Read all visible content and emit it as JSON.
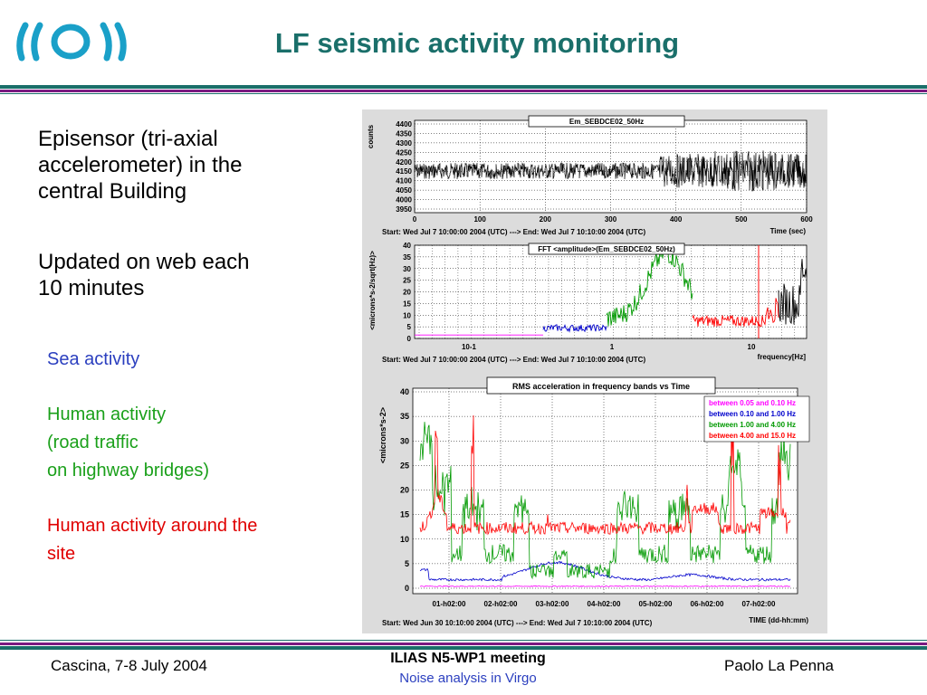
{
  "slide": {
    "title": "LF seismic activity monitoring",
    "intro_lines": [
      "Episensor (tri-axial",
      "accelerometer) in the",
      "central Building"
    ],
    "update_lines": [
      "Updated on web each",
      "10 minutes"
    ],
    "sea_label": "Sea activity",
    "human_lines": [
      "Human activity",
      "(road traffic",
      "on highway bridges)"
    ],
    "site_lines": [
      "Human activity around the",
      "site"
    ],
    "colors": {
      "title": "#1a6f6a",
      "sea": "#2b3fbf",
      "human": "#1aa01a",
      "site": "#e00000",
      "bar_top": "#1a6f6a",
      "bar_mid": "#7a1a80"
    }
  },
  "footer": {
    "left": "Cascina, 7-8 July 2004",
    "center_title": "ILIAS N5-WP1 meeting",
    "center_sub": "Noise analysis in Virgo",
    "right": "Paolo La Penna"
  },
  "plots": {
    "p1": {
      "title": "Em_SEBDCE02_50Hz",
      "ylabel": "counts",
      "xlabel": "Time (sec)",
      "yticks": [
        "4400",
        "4350",
        "4300",
        "4250",
        "4200",
        "4150",
        "4100",
        "4050",
        "4000",
        "3950"
      ],
      "xticks": [
        "0",
        "100",
        "200",
        "300",
        "400",
        "500",
        "600"
      ],
      "caption": "Start: Wed Jul  7 10:00:00 2004 (UTC) ---> End: Wed Jul  7 10:10:00 2004 (UTC)"
    },
    "p2": {
      "title": "FFT <amplitude>(Em_SEBDCE02_50Hz)",
      "ylabel": "<microns*s-2/sqrt(Hz)>",
      "xlabel": "frequency[Hz]",
      "yticks": [
        "40",
        "35",
        "30",
        "25",
        "20",
        "15",
        "10",
        "5",
        "0"
      ],
      "xticks": [
        "10-1",
        "1",
        "10"
      ],
      "caption": "Start: Wed Jul  7 10:00:00 2004 (UTC) ---> End: Wed Jul  7 10:10:00 2004 (UTC)"
    },
    "p3": {
      "title": "RMS acceleration in frequency bands vs Time",
      "ylabel": "<microns*s-2>",
      "xlabel": "TIME (dd-hh:mm)",
      "yticks": [
        "40",
        "35",
        "30",
        "25",
        "20",
        "15",
        "10",
        "5",
        "0"
      ],
      "xticks": [
        "01-h02:00",
        "02-h02:00",
        "03-h02:00",
        "04-h02:00",
        "05-h02:00",
        "06-h02:00",
        "07-h02:00"
      ],
      "legend": [
        "between 0.05 and 0.10 Hz",
        "between 0.10 and 1.00 Hz",
        "between 1.00 and 4.00 Hz",
        "between 4.00 and 15.0 Hz"
      ],
      "legend_colors": [
        "#ff00ff",
        "#0000cc",
        "#009900",
        "#ff0000"
      ],
      "caption": "Start: Wed Jun 30 10:10:00 2004 (UTC) ---> End: Wed Jul  7 10:10:00 2004 (UTC)"
    }
  }
}
